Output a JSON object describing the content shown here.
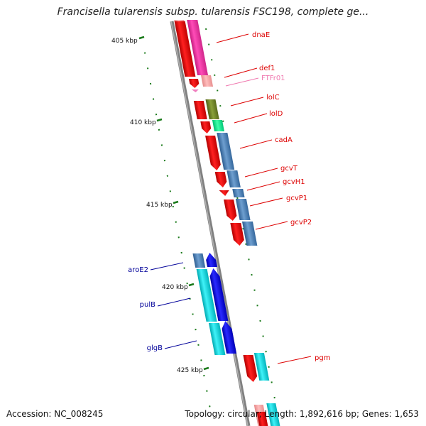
{
  "title": "Francisella tularensis subsp. tularensis FSC198, complete ge...",
  "footer": {
    "accession": "Accession: NC_008245",
    "topology": "Topology: circular; Length: 1,892,616 bp; Genes: 1,653"
  },
  "scale_ticks": [
    {
      "label": "405 kbp"
    },
    {
      "label": "410 kbp"
    },
    {
      "label": "415 kbp"
    },
    {
      "label": "420 kbp"
    },
    {
      "label": "425 kbp"
    }
  ],
  "gene_labels": [
    {
      "name": "dnaE",
      "color": "#dd0000"
    },
    {
      "name": "def1",
      "color": "#dd0000"
    },
    {
      "name": "FTFr01",
      "color": "#f07ab0"
    },
    {
      "name": "lolC",
      "color": "#dd0000"
    },
    {
      "name": "lolD",
      "color": "#dd0000"
    },
    {
      "name": "cadA",
      "color": "#dd0000"
    },
    {
      "name": "gcvT",
      "color": "#dd0000"
    },
    {
      "name": "gcvH1",
      "color": "#dd0000"
    },
    {
      "name": "gcvP1",
      "color": "#dd0000"
    },
    {
      "name": "gcvP2",
      "color": "#dd0000"
    },
    {
      "name": "aroE2",
      "color": "#000099"
    },
    {
      "name": "pulB",
      "color": "#000099"
    },
    {
      "name": "glgB",
      "color": "#000099"
    },
    {
      "name": "pgm",
      "color": "#dd0000"
    }
  ],
  "colors": {
    "backbone": "#808080",
    "cds": "#ee0000",
    "pink_feature": "#ee2d9e",
    "blue_feature": "#4a7fb5",
    "cyan_feature": "#00d0d8",
    "dark_blue_feature": "#0000ee",
    "olive_feature": "#6b7f25",
    "green_feature": "#00ee88",
    "tick": "#1a7a1a"
  }
}
